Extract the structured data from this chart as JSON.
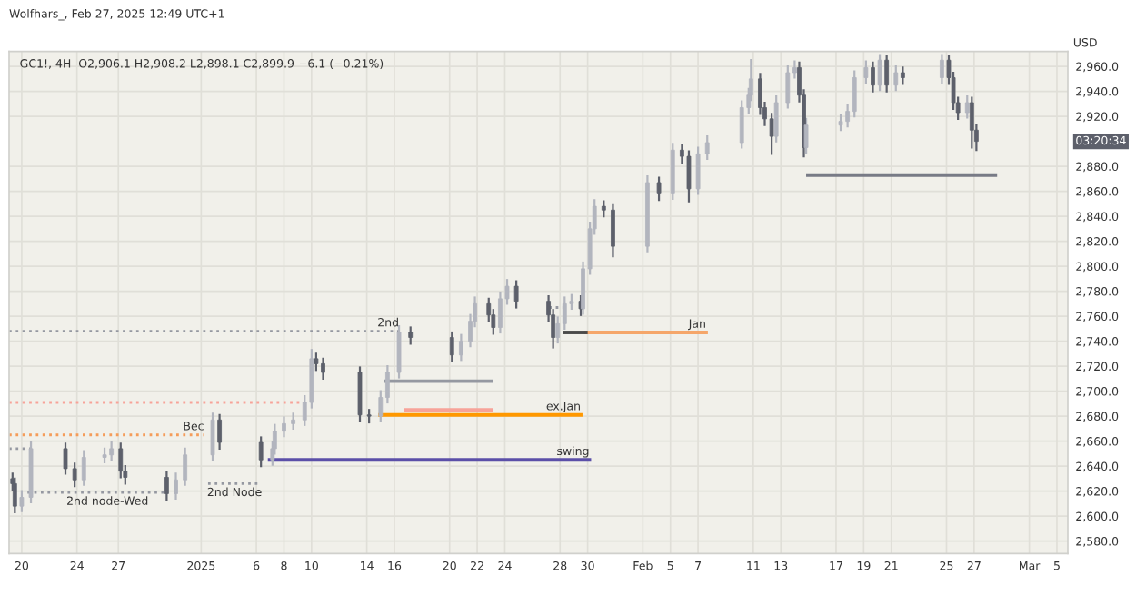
{
  "chart_data": {
    "type": "candlestick",
    "title": "Wolfhars_, Feb 27, 2025 12:49 UTC+1",
    "subtitle": "GC1!, 4H  O2,906.1 H2,908.2 L2,898.1 C2,899.9 −6.1 (−0.21%)",
    "ylabel": "USD",
    "x": [
      "2024-12-19T08:00",
      "2024-12-19T12:00",
      "2024-12-20T00:00",
      "2024-12-20T16:00",
      "2024-12-23T04:00",
      "2024-12-23T20:00",
      "2024-12-24T12:00",
      "2024-12-26T00:00",
      "2024-12-26T12:00",
      "2024-12-27T04:00",
      "2024-12-27T12:00",
      "2024-12-30T12:00",
      "2024-12-31T04:00",
      "2024-12-31T20:00",
      "2025-01-02T20:00",
      "2025-01-03T08:00",
      "2025-01-06T08:00",
      "2025-01-07T04:00",
      "2025-01-07T08:00",
      "2025-01-08T00:00",
      "2025-01-08T16:00",
      "2025-01-09T12:00",
      "2025-01-10T00:00",
      "2025-01-10T08:00",
      "2025-01-10T20:00",
      "2025-01-13T12:00",
      "2025-01-14T04:00",
      "2025-01-15T00:00",
      "2025-01-15T12:00",
      "2025-01-16T08:00",
      "2025-01-17T04:00",
      "2025-01-20T04:00",
      "2025-01-20T20:00",
      "2025-01-21T12:00",
      "2025-01-21T20:00",
      "2025-01-22T20:00",
      "2025-01-23T04:00",
      "2025-01-23T16:00",
      "2025-01-24T04:00",
      "2025-01-24T20:00",
      "2025-01-27T04:00",
      "2025-01-27T12:00",
      "2025-01-27T20:00",
      "2025-01-28T08:00",
      "2025-01-28T20:00",
      "2025-01-29T12:00",
      "2025-01-29T16:00",
      "2025-01-30T04:00",
      "2025-01-30T12:00",
      "2025-01-31T04:00",
      "2025-01-31T20:00",
      "2025-02-03T08:00",
      "2025-02-04T04:00",
      "2025-02-05T04:00",
      "2025-02-05T20:00",
      "2025-02-06T08:00",
      "2025-02-07T00:00",
      "2025-02-07T16:00",
      "2025-02-10T04:00",
      "2025-02-10T16:00",
      "2025-02-10T20:00",
      "2025-02-11T12:00",
      "2025-02-11T20:00",
      "2025-02-12T08:00",
      "2025-02-12T16:00",
      "2025-02-13T12:00",
      "2025-02-14T00:00",
      "2025-02-14T08:00",
      "2025-02-14T16:00",
      "2025-02-14T20:00",
      "2025-02-17T08:00",
      "2025-02-17T20:00",
      "2025-02-18T08:00",
      "2025-02-19T04:00",
      "2025-02-19T16:00",
      "2025-02-20T04:00",
      "2025-02-20T16:00",
      "2025-02-21T08:00",
      "2025-02-21T20:00",
      "2025-02-24T16:00",
      "2025-02-25T04:00",
      "2025-02-25T12:00",
      "2025-02-25T20:00",
      "2025-02-26T12:00",
      "2025-02-26T20:00",
      "2025-02-27T04:00"
    ],
    "ohlc": [
      [
        2630,
        2634,
        2621,
        2626
      ],
      [
        2626,
        2630,
        2603,
        2608
      ],
      [
        2608,
        2620,
        2604,
        2615
      ],
      [
        2615,
        2659,
        2611,
        2654
      ],
      [
        2654,
        2658,
        2634,
        2638
      ],
      [
        2638,
        2642,
        2624,
        2629
      ],
      [
        2629,
        2652,
        2625,
        2647
      ],
      [
        2647,
        2654,
        2643,
        2649
      ],
      [
        2649,
        2659,
        2645,
        2654
      ],
      [
        2654,
        2658,
        2631,
        2636
      ],
      [
        2636,
        2640,
        2626,
        2631
      ],
      [
        2631,
        2635,
        2613,
        2618
      ],
      [
        2618,
        2634,
        2614,
        2629
      ],
      [
        2629,
        2654,
        2625,
        2649
      ],
      [
        2649,
        2682,
        2645,
        2677
      ],
      [
        2677,
        2681,
        2654,
        2659
      ],
      [
        2659,
        2663,
        2640,
        2645
      ],
      [
        2645,
        2659,
        2641,
        2654
      ],
      [
        2654,
        2673,
        2650,
        2668
      ],
      [
        2668,
        2679,
        2664,
        2674
      ],
      [
        2674,
        2682,
        2670,
        2677
      ],
      [
        2677,
        2696,
        2673,
        2691
      ],
      [
        2691,
        2733,
        2687,
        2726
      ],
      [
        2726,
        2730,
        2717,
        2722
      ],
      [
        2722,
        2726,
        2710,
        2715
      ],
      [
        2715,
        2719,
        2676,
        2681
      ],
      [
        2681,
        2685,
        2675,
        2680
      ],
      [
        2680,
        2700,
        2676,
        2695
      ],
      [
        2695,
        2720,
        2691,
        2715
      ],
      [
        2715,
        2752,
        2711,
        2747
      ],
      [
        2747,
        2751,
        2738,
        2743
      ],
      [
        2743,
        2747,
        2724,
        2729
      ],
      [
        2729,
        2745,
        2725,
        2740
      ],
      [
        2740,
        2761,
        2736,
        2756
      ],
      [
        2756,
        2775,
        2752,
        2770
      ],
      [
        2770,
        2774,
        2756,
        2761
      ],
      [
        2761,
        2765,
        2746,
        2751
      ],
      [
        2751,
        2779,
        2747,
        2774
      ],
      [
        2774,
        2789,
        2770,
        2784
      ],
      [
        2784,
        2788,
        2767,
        2772
      ],
      [
        2772,
        2776,
        2756,
        2761
      ],
      [
        2761,
        2765,
        2735,
        2743
      ],
      [
        2743,
        2759,
        2739,
        2754
      ],
      [
        2754,
        2775,
        2750,
        2770
      ],
      [
        2770,
        2777,
        2766,
        2772
      ],
      [
        2772,
        2776,
        2761,
        2766
      ],
      [
        2766,
        2803,
        2762,
        2798
      ],
      [
        2798,
        2835,
        2794,
        2830
      ],
      [
        2830,
        2853,
        2826,
        2848
      ],
      [
        2848,
        2852,
        2840,
        2845
      ],
      [
        2845,
        2849,
        2808,
        2816
      ],
      [
        2816,
        2872,
        2812,
        2867
      ],
      [
        2867,
        2871,
        2853,
        2858
      ],
      [
        2858,
        2898,
        2854,
        2893
      ],
      [
        2893,
        2897,
        2883,
        2888
      ],
      [
        2888,
        2892,
        2852,
        2862
      ],
      [
        2862,
        2895,
        2858,
        2890
      ],
      [
        2890,
        2904,
        2886,
        2899
      ],
      [
        2899,
        2932,
        2895,
        2927
      ],
      [
        2927,
        2942,
        2923,
        2937
      ],
      [
        2937,
        2965,
        2933,
        2950
      ],
      [
        2950,
        2954,
        2922,
        2927
      ],
      [
        2927,
        2931,
        2913,
        2918
      ],
      [
        2918,
        2922,
        2890,
        2904
      ],
      [
        2904,
        2936,
        2900,
        2931
      ],
      [
        2931,
        2960,
        2927,
        2955
      ],
      [
        2955,
        2964,
        2951,
        2959
      ],
      [
        2959,
        2963,
        2932,
        2937
      ],
      [
        2937,
        2941,
        2888,
        2895
      ],
      [
        2895,
        2918,
        2891,
        2913
      ],
      [
        2913,
        2921,
        2909,
        2916
      ],
      [
        2916,
        2929,
        2912,
        2924
      ],
      [
        2924,
        2956,
        2920,
        2951
      ],
      [
        2951,
        2964,
        2947,
        2959
      ],
      [
        2959,
        2963,
        2940,
        2945
      ],
      [
        2945,
        2969,
        2941,
        2965
      ],
      [
        2965,
        2968,
        2940,
        2945
      ],
      [
        2945,
        2960,
        2941,
        2955
      ],
      [
        2955,
        2959,
        2946,
        2951
      ],
      [
        2951,
        2969,
        2947,
        2965
      ],
      [
        2965,
        2968,
        2946,
        2951
      ],
      [
        2951,
        2955,
        2926,
        2931
      ],
      [
        2931,
        2935,
        2918,
        2923
      ],
      [
        2923,
        2936,
        2919,
        2931
      ],
      [
        2931,
        2935,
        2895,
        2909
      ],
      [
        2909,
        2913,
        2893,
        2900
      ]
    ],
    "colors": [
      "#5d606b",
      "#5d606b",
      "#b2b5be",
      "#b2b5be",
      "#5d606b",
      "#5d606b",
      "#b2b5be",
      "#b2b5be",
      "#b2b5be",
      "#5d606b",
      "#5d606b",
      "#5d606b",
      "#b2b5be",
      "#b2b5be",
      "#b2b5be",
      "#5d606b",
      "#5d606b",
      "#b2b5be",
      "#b2b5be",
      "#b2b5be",
      "#b2b5be",
      "#b2b5be",
      "#b2b5be",
      "#5d606b",
      "#5d606b",
      "#5d606b",
      "#5d606b",
      "#b2b5be",
      "#b2b5be",
      "#b2b5be",
      "#5d606b",
      "#5d606b",
      "#b2b5be",
      "#b2b5be",
      "#b2b5be",
      "#5d606b",
      "#5d606b",
      "#b2b5be",
      "#b2b5be",
      "#5d606b",
      "#5d606b",
      "#5d606b",
      "#b2b5be",
      "#b2b5be",
      "#b2b5be",
      "#5d606b",
      "#b2b5be",
      "#b2b5be",
      "#b2b5be",
      "#5d606b",
      "#5d606b",
      "#b2b5be",
      "#5d606b",
      "#b2b5be",
      "#5d606b",
      "#5d606b",
      "#b2b5be",
      "#b2b5be",
      "#b2b5be",
      "#b2b5be",
      "#b2b5be",
      "#5d606b",
      "#5d606b",
      "#5d606b",
      "#b2b5be",
      "#b2b5be",
      "#b2b5be",
      "#5d606b",
      "#5d606b",
      "#b2b5be",
      "#b2b5be",
      "#b2b5be",
      "#b2b5be",
      "#b2b5be",
      "#5d606b",
      "#b2b5be",
      "#5d606b",
      "#b2b5be",
      "#5d606b",
      "#b2b5be",
      "#5d606b",
      "#5d606b",
      "#5d606b",
      "#b2b5be",
      "#5d606b",
      "#5d606b"
    ],
    "series": [
      {
        "type": "line",
        "name": "2nd",
        "x": [
          "2024-12-19T02:00",
          "2025-01-16T08:00"
        ],
        "values": [
          2748,
          2748
        ],
        "color": "#9598a1",
        "line_style": "dotted"
      },
      {
        "type": "line",
        "x": [
          "2024-12-19T02:00",
          "2025-01-09T08:00"
        ],
        "values": [
          2691,
          2691
        ],
        "color": "#f7a399",
        "line_style": "dotted"
      },
      {
        "type": "line",
        "name": "Bec",
        "x": [
          "2024-12-19T02:00",
          "2025-01-02T05:00"
        ],
        "values": [
          2665,
          2665
        ],
        "color": "#f59c5a",
        "line_style": "dotted"
      },
      {
        "type": "line",
        "x": [
          "2024-12-19T02:00",
          "2024-12-20T17:00"
        ],
        "values": [
          2654,
          2654
        ],
        "color": "#9598a1",
        "line_style": "dotted"
      },
      {
        "type": "line",
        "x": [
          "2024-12-20T10:00",
          "2024-12-30T12:00"
        ],
        "values": [
          2619,
          2619
        ],
        "color": "#9598a1",
        "line_style": "dotted"
      },
      {
        "type": "line",
        "x": [
          "2025-01-02T12:00",
          "2025-01-06T07:00"
        ],
        "values": [
          2626,
          2626
        ],
        "color": "#9598a1",
        "line_style": "dotted"
      },
      {
        "type": "line",
        "x": [
          "2025-01-27T05:00",
          "2025-01-28T09:00"
        ],
        "values": [
          2767,
          2767
        ],
        "color": "#9598a1",
        "line_style": "dotted"
      },
      {
        "type": "line",
        "name": "swing",
        "x": [
          "2025-01-06T23:00",
          "2025-01-30T03:00"
        ],
        "values": [
          2645,
          2645
        ],
        "color": "#5b4fa8",
        "line_style": "solid"
      },
      {
        "type": "line",
        "name": "ex.Jan",
        "x": [
          "2025-01-14T23:00",
          "2025-01-29T12:00"
        ],
        "values": [
          2681,
          2681
        ],
        "color": "#ff9800",
        "line_style": "solid"
      },
      {
        "type": "line",
        "x": [
          "2025-01-16T19:00",
          "2025-01-23T01:00"
        ],
        "values": [
          2685,
          2685
        ],
        "color": "#f7a399",
        "line_style": "solid"
      },
      {
        "type": "line",
        "x": [
          "2025-01-15T09:00",
          "2025-01-23T01:00"
        ],
        "values": [
          2708,
          2708
        ],
        "color": "#9598a1",
        "line_style": "solid"
      },
      {
        "type": "line",
        "name": "Jan",
        "x": [
          "2025-01-29T21:00",
          "2025-02-07T14:00"
        ],
        "values": [
          2747,
          2747
        ],
        "color": "#f5a66a",
        "line_style": "solid"
      },
      {
        "type": "line",
        "x": [
          "2025-01-28T09:00",
          "2025-01-29T21:00"
        ],
        "values": [
          2747,
          2747
        ],
        "color": "#4a4a4a",
        "line_style": "solid"
      },
      {
        "type": "line",
        "x": [
          "2025-02-14T23:00",
          "2025-02-28T13:00"
        ],
        "values": [
          2873,
          2873
        ],
        "color": "#787b86",
        "line_style": "solid"
      }
    ],
    "annotations": [
      {
        "text": "2nd node-Wed",
        "x": "2024-12-26T05:00",
        "y": 2619
      },
      {
        "text": "2nd Node",
        "x": "2025-01-04T10:00",
        "y": 2626
      },
      "03:20:34"
    ],
    "xlim": [
      "2024-12-19T02:00",
      "2025-03-05T19:00"
    ],
    "xticks": [
      {
        "value": "2024-12-20",
        "label": "20"
      },
      {
        "value": "2024-12-24",
        "label": "24"
      },
      {
        "value": "2024-12-27",
        "label": "27"
      },
      {
        "value": "2025-01-02",
        "label": "2025"
      },
      {
        "value": "2025-01-06",
        "label": "6"
      },
      {
        "value": "2025-01-08",
        "label": "8"
      },
      {
        "value": "2025-01-10",
        "label": "10"
      },
      {
        "value": "2025-01-14",
        "label": "14"
      },
      {
        "value": "2025-01-16",
        "label": "16"
      },
      {
        "value": "2025-01-20",
        "label": "20"
      },
      {
        "value": "2025-01-22",
        "label": "22"
      },
      {
        "value": "2025-01-24",
        "label": "24"
      },
      {
        "value": "2025-01-28",
        "label": "28"
      },
      {
        "value": "2025-01-30",
        "label": "30"
      },
      {
        "value": "2025-02-03",
        "label": "Feb"
      },
      {
        "value": "2025-02-05",
        "label": "5"
      },
      {
        "value": "2025-02-07",
        "label": "7"
      },
      {
        "value": "2025-02-11",
        "label": "11"
      },
      {
        "value": "2025-02-13",
        "label": "13"
      },
      {
        "value": "2025-02-17",
        "label": "17"
      },
      {
        "value": "2025-02-19",
        "label": "19"
      },
      {
        "value": "2025-02-21",
        "label": "21"
      },
      {
        "value": "2025-02-25",
        "label": "25"
      },
      {
        "value": "2025-02-27",
        "label": "27"
      },
      {
        "value": "2025-03-03",
        "label": "Mar"
      },
      {
        "value": "2025-03-05",
        "label": "5"
      }
    ],
    "ylim": [
      2570,
      2972
    ],
    "yticks": [
      {
        "value": 2580,
        "label": "2,580.0"
      },
      {
        "value": 2600,
        "label": "2,600.0"
      },
      {
        "value": 2620,
        "label": "2,620.0"
      },
      {
        "value": 2640,
        "label": "2,640.0"
      },
      {
        "value": 2660,
        "label": "2,660.0"
      },
      {
        "value": 2680,
        "label": "2,680.0"
      },
      {
        "value": 2700,
        "label": "2,700.0"
      },
      {
        "value": 2720,
        "label": "2,720.0"
      },
      {
        "value": 2740,
        "label": "2,740.0"
      },
      {
        "value": 2760,
        "label": "2,760.0"
      },
      {
        "value": 2780,
        "label": "2,780.0"
      },
      {
        "value": 2800,
        "label": "2,800.0"
      },
      {
        "value": 2820,
        "label": "2,820.0"
      },
      {
        "value": 2840,
        "label": "2,840.0"
      },
      {
        "value": 2860,
        "label": "2,860.0"
      },
      {
        "value": 2880,
        "label": "2,880.0"
      },
      {
        "value": 2920,
        "label": "2,920.0"
      },
      {
        "value": 2940,
        "label": "2,940.0"
      },
      {
        "value": 2960,
        "label": "2,960.0"
      }
    ],
    "grid": true,
    "legend": false
  }
}
